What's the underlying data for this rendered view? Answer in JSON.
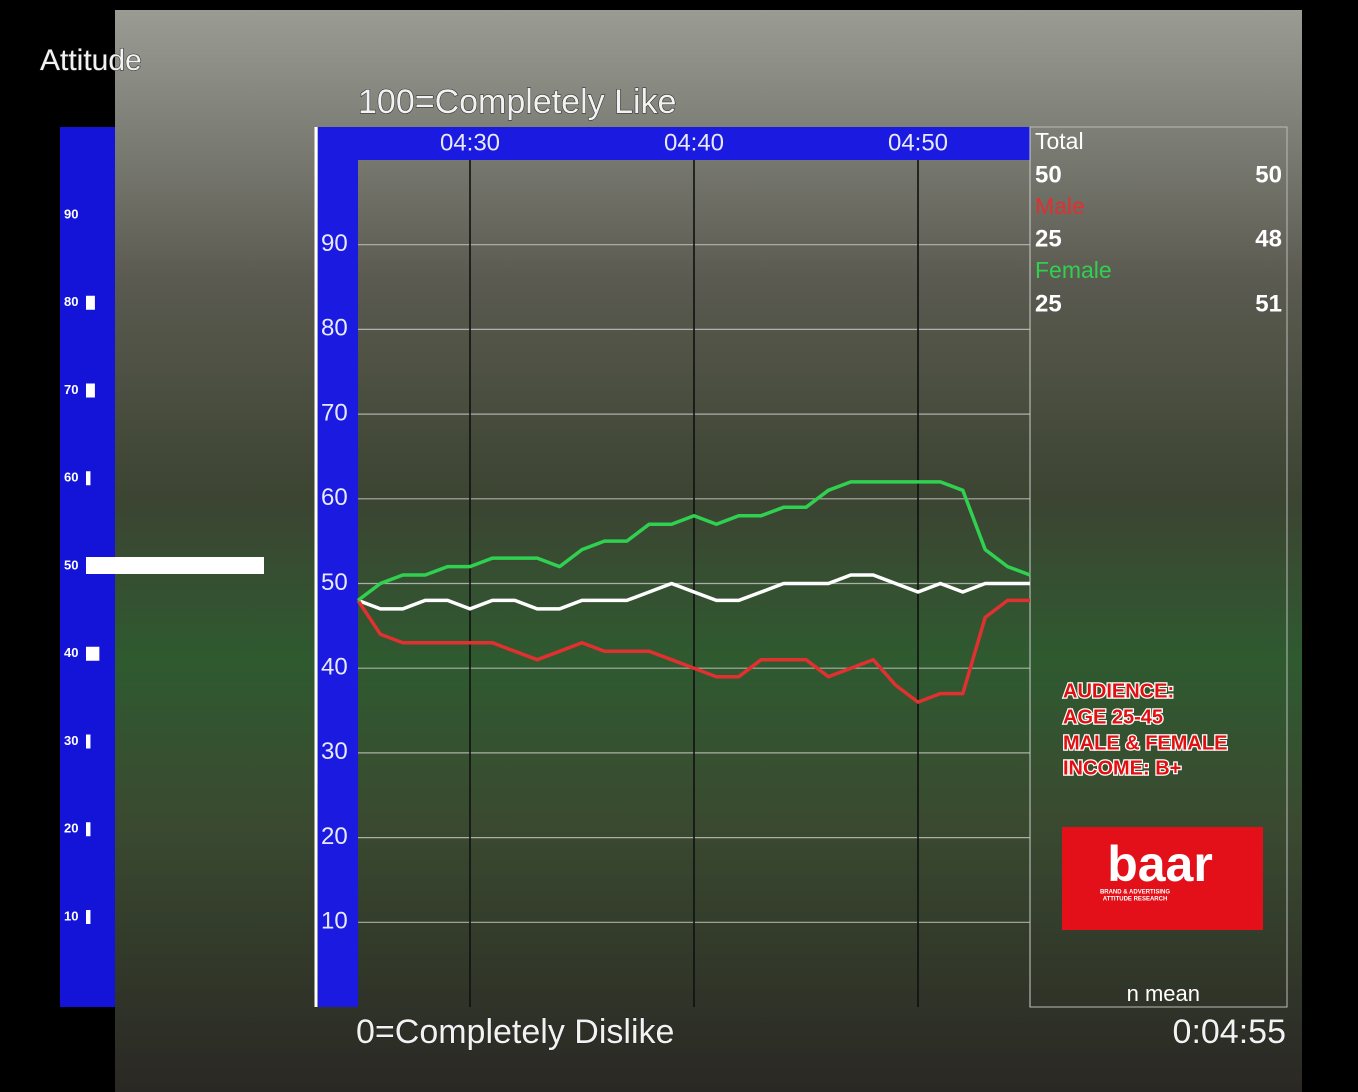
{
  "title": "Attitude",
  "chart_data": [
    {
      "type": "line",
      "annotations": [
        "100=Completely Like",
        "0=Completely Dislike"
      ],
      "x": [
        265,
        266,
        267,
        268,
        269,
        270,
        271,
        272,
        273,
        274,
        275,
        276,
        277,
        278,
        279,
        280,
        281,
        282,
        283,
        284,
        285,
        286,
        287,
        288,
        289,
        290,
        291,
        292,
        293,
        294,
        295
      ],
      "xlim": [
        265,
        295
      ],
      "xticks": [
        {
          "value": 270,
          "label": "04:30"
        },
        {
          "value": 280,
          "label": "04:40"
        },
        {
          "value": 290,
          "label": "04:50"
        }
      ],
      "ylim": [
        0,
        100
      ],
      "yticks": [
        10,
        20,
        30,
        40,
        50,
        60,
        70,
        80,
        90
      ],
      "grid": true,
      "stats_header": "n mean",
      "series": [
        {
          "name": "Total",
          "color": "#ffffff",
          "n": 50,
          "mean": 50,
          "values": [
            48,
            47,
            47,
            48,
            48,
            47,
            48,
            48,
            47,
            47,
            48,
            48,
            48,
            49,
            50,
            49,
            48,
            48,
            49,
            50,
            50,
            50,
            51,
            51,
            50,
            49,
            50,
            49,
            50,
            50,
            50
          ]
        },
        {
          "name": "Male",
          "color": "#e03030",
          "n": 25,
          "mean": 48,
          "values": [
            48,
            44,
            43,
            43,
            43,
            43,
            43,
            42,
            41,
            42,
            43,
            42,
            42,
            42,
            41,
            40,
            39,
            39,
            41,
            41,
            41,
            39,
            40,
            41,
            38,
            36,
            37,
            37,
            46,
            48,
            48
          ]
        },
        {
          "name": "Female",
          "color": "#30d050",
          "n": 25,
          "mean": 51,
          "values": [
            48,
            50,
            51,
            51,
            52,
            52,
            53,
            53,
            53,
            52,
            54,
            55,
            55,
            57,
            57,
            58,
            57,
            58,
            58,
            59,
            59,
            61,
            62,
            62,
            62,
            62,
            62,
            61,
            54,
            52,
            51
          ]
        }
      ]
    },
    {
      "type": "hbar",
      "categories": [
        "90",
        "80",
        "70",
        "60",
        "50",
        "40",
        "30",
        "20",
        "10"
      ],
      "values": [
        0,
        2,
        2,
        1,
        40,
        3,
        1,
        1,
        1
      ],
      "color": "#ffffff"
    }
  ],
  "audience": [
    "AUDIENCE:",
    "AGE 25-45",
    "MALE & FEMALE",
    "INCOME: B+"
  ],
  "logo": {
    "name": "baar",
    "tagline": [
      "BRAND & ADVERTISING",
      "ATTITUDE RESEARCH"
    ]
  },
  "timecode": "0:04:55"
}
